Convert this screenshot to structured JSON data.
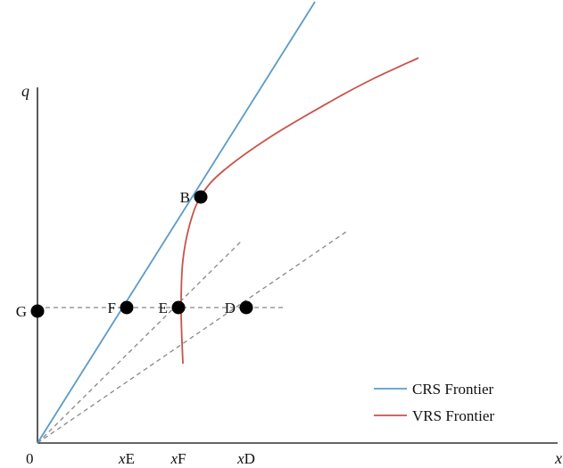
{
  "chart_data": {
    "type": "line",
    "title": "",
    "axes": {
      "y_label": "q",
      "x_label": "x",
      "origin_label": "0",
      "x_tick_labels": [
        {
          "id": "xE",
          "prefix": "x",
          "suffix": "E",
          "x": 142
        },
        {
          "id": "xF",
          "prefix": "x",
          "suffix": "F",
          "x": 200
        },
        {
          "id": "xD",
          "prefix": "x",
          "suffix": "D",
          "x": 276
        }
      ],
      "x_range": [
        0,
        590
      ],
      "y_range": [
        0,
        495
      ]
    },
    "series": [
      {
        "name": "CRS Frontier",
        "color": "#5b9bc8",
        "style": "solid",
        "points": [
          [
            0,
            0
          ],
          [
            311,
            495
          ]
        ]
      },
      {
        "name": "VRS Frontier",
        "color": "#c9534a",
        "style": "solid",
        "points": [
          [
            163,
            89
          ],
          [
            161,
            150
          ],
          [
            163,
            205
          ],
          [
            172,
            250
          ],
          [
            185,
            280
          ],
          [
            209,
            306
          ],
          [
            262,
            344
          ],
          [
            330,
            384
          ],
          [
            375,
            408
          ],
          [
            427,
            432
          ]
        ]
      }
    ],
    "rays": [
      {
        "color": "#888888",
        "style": "dashed",
        "points": [
          [
            0,
            0
          ],
          [
            229,
            227
          ]
        ]
      },
      {
        "color": "#888888",
        "style": "dashed",
        "points": [
          [
            0,
            0
          ],
          [
            346,
            237
          ]
        ]
      },
      {
        "color": "#888888",
        "style": "dashed",
        "points": [
          [
            0,
            152
          ],
          [
            276,
            152
          ]
        ]
      }
    ],
    "points": [
      {
        "label": "G",
        "x": 0,
        "y": 148,
        "label_side": "left"
      },
      {
        "label": "F",
        "x": 100,
        "y": 152,
        "label_side": "left"
      },
      {
        "label": "E",
        "x": 158,
        "y": 152,
        "label_side": "left"
      },
      {
        "label": "D",
        "x": 234,
        "y": 152,
        "label_side": "left"
      },
      {
        "label": "B",
        "x": 183,
        "y": 276,
        "label_side": "left"
      }
    ],
    "legend": {
      "position": "bottom-right",
      "entries": [
        {
          "label": "CRS Frontier",
          "color": "#5b9bc8"
        },
        {
          "label": "VRS Frontier",
          "color": "#c9534a"
        }
      ]
    }
  }
}
